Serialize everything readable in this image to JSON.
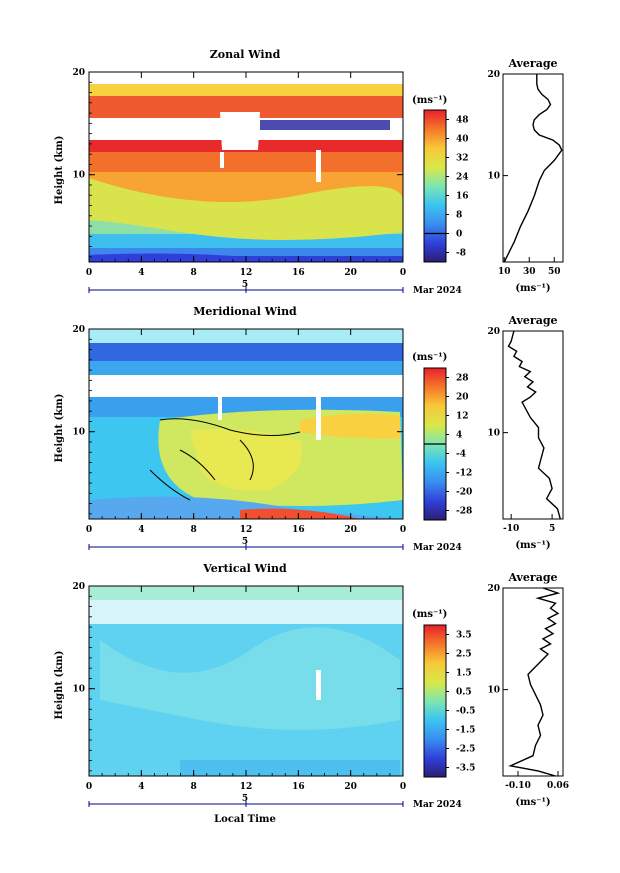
{
  "chart_data": [
    {
      "type": "heatmap",
      "title": "Zonal Wind",
      "xlabel": "",
      "ylabel": "Height (km)",
      "x_ticks": [
        "0",
        "4",
        "8",
        "12",
        "16",
        "20",
        "0"
      ],
      "y_ticks": [
        "10",
        "20"
      ],
      "xlim": [
        0,
        24
      ],
      "ylim": [
        1.5,
        20
      ],
      "date_day": "5",
      "date_label": "Mar 2024",
      "colorbar_unit": "(ms⁻¹)",
      "colorbar_ticks": [
        "48",
        "40",
        "32",
        "24",
        "16",
        "8",
        "0",
        "-8"
      ],
      "colorbar_range": [
        -12,
        52
      ],
      "colorbar_zero_line": 0,
      "zero_contour": false,
      "profile": {
        "title": "Average",
        "xlabel": "(ms⁻¹)",
        "x_ticks": [
          "10",
          "30",
          "50"
        ],
        "x_tick_values": [
          10,
          30,
          50
        ],
        "xlim": [
          9,
          57
        ],
        "heights": [
          1.5,
          2.5,
          3.5,
          5,
          6.5,
          8,
          9.5,
          10.5,
          11.5,
          12,
          12.5,
          13,
          13.5,
          14,
          14.5,
          15,
          15.5,
          16,
          16.5,
          17,
          17.5,
          18,
          18.5,
          19,
          20
        ],
        "values": [
          10,
          14,
          18,
          23,
          29,
          34,
          38,
          42,
          50,
          53,
          56,
          54,
          49,
          38,
          34,
          33,
          34,
          38,
          44,
          47,
          45,
          40,
          37,
          36,
          36
        ]
      }
    },
    {
      "type": "heatmap",
      "title": "Meridional Wind",
      "xlabel": "",
      "ylabel": "Height (km)",
      "x_ticks": [
        "0",
        "4",
        "8",
        "12",
        "16",
        "20",
        "0"
      ],
      "y_ticks": [
        "10",
        "20"
      ],
      "xlim": [
        0,
        24
      ],
      "ylim": [
        1.5,
        20
      ],
      "date_day": "5",
      "date_label": "Mar 2024",
      "colorbar_unit": "(ms⁻¹)",
      "colorbar_ticks": [
        "28",
        "20",
        "12",
        "4",
        "-4",
        "-12",
        "-20",
        "-28"
      ],
      "colorbar_range": [
        -30,
        30
      ],
      "colorbar_zero_line": 0,
      "zero_contour": true,
      "profile": {
        "title": "Average",
        "xlabel": "(ms⁻¹)",
        "x_ticks": [
          "-10",
          "5"
        ],
        "x_tick_values": [
          -10,
          5
        ],
        "xlim": [
          -13,
          9
        ],
        "heights": [
          1.5,
          2.5,
          3.5,
          4.5,
          5.5,
          6.5,
          7.5,
          8.5,
          9.5,
          10.5,
          11.5,
          12.5,
          13,
          13.5,
          14,
          14.5,
          15,
          15.5,
          16,
          16.5,
          17,
          17.5,
          18,
          18.5,
          19,
          20
        ],
        "values": [
          8,
          7,
          3,
          5,
          4,
          0,
          1,
          2,
          0,
          0,
          -3,
          -5,
          -6,
          -3,
          -1,
          -4,
          -2,
          -5,
          -3,
          -7,
          -6,
          -9,
          -8,
          -11,
          -10,
          -9
        ]
      }
    },
    {
      "type": "heatmap",
      "title": "Vertical Wind",
      "xlabel": "Local Time",
      "ylabel": "Height (km)",
      "x_ticks": [
        "0",
        "4",
        "8",
        "12",
        "16",
        "20",
        "0"
      ],
      "y_ticks": [
        "10",
        "20"
      ],
      "xlim": [
        0,
        24
      ],
      "ylim": [
        1.5,
        20
      ],
      "date_day": "5",
      "date_label": "Mar 2024",
      "colorbar_unit": "(ms⁻¹)",
      "colorbar_ticks": [
        "3.5",
        "2.5",
        "1.5",
        "0.5",
        "-0.5",
        "-1.5",
        "-2.5",
        "-3.5"
      ],
      "colorbar_range": [
        -4,
        4
      ],
      "colorbar_zero_line": null,
      "zero_contour": false,
      "profile": {
        "title": "Average",
        "xlabel": "(ms⁻¹)",
        "x_ticks": [
          "-0.10",
          "0.06"
        ],
        "x_tick_values": [
          -0.1,
          0.06
        ],
        "xlim": [
          -0.16,
          0.08
        ],
        "heights": [
          1.5,
          2,
          2.5,
          3.5,
          4.5,
          5.5,
          6.5,
          7.5,
          8.5,
          9.5,
          10.5,
          11.5,
          12,
          12.5,
          13,
          13.5,
          14,
          14.5,
          15,
          15.5,
          16,
          16.5,
          17,
          17.5,
          18,
          18.5,
          19,
          19.5,
          20
        ],
        "values": [
          0.05,
          -0.02,
          -0.13,
          -0.04,
          -0.03,
          -0.01,
          -0.02,
          0.0,
          -0.01,
          -0.03,
          -0.05,
          -0.06,
          -0.04,
          -0.02,
          0.0,
          0.02,
          -0.01,
          0.03,
          0.0,
          0.04,
          0.01,
          0.05,
          0.02,
          0.06,
          0.03,
          0.05,
          -0.02,
          0.06,
          0.0
        ]
      }
    }
  ]
}
